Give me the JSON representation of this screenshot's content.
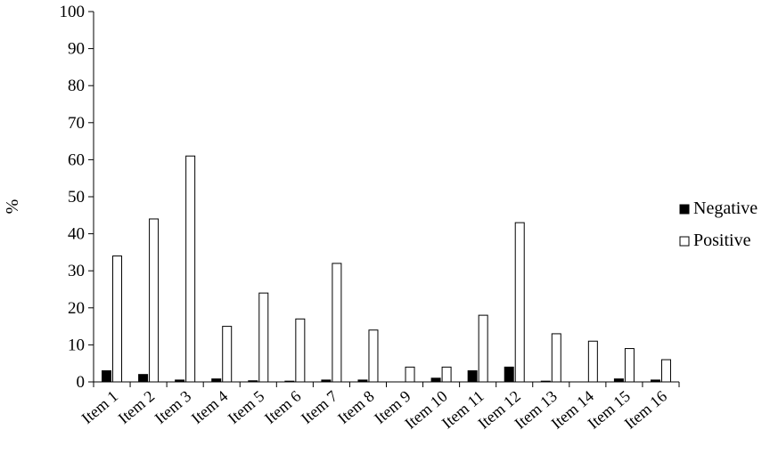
{
  "chart_data": {
    "type": "bar",
    "title": "",
    "xlabel": "",
    "ylabel": "%",
    "ylim": [
      0,
      100
    ],
    "yticks": [
      0,
      10,
      20,
      30,
      40,
      50,
      60,
      70,
      80,
      90,
      100
    ],
    "grid": false,
    "legend_position": "right",
    "categories": [
      "Item 1",
      "Item 2",
      "Item 3",
      "Item 4",
      "Item 5",
      "Item 6",
      "Item 7",
      "Item 8",
      "Item 9",
      "Item 10",
      "Item 11",
      "Item 12",
      "Item 13",
      "Item 14",
      "Item 15",
      "Item 16"
    ],
    "series": [
      {
        "name": "Negative",
        "color": "#000000",
        "values": [
          3,
          2,
          0.5,
          0.8,
          0.3,
          0.2,
          0.5,
          0.5,
          0,
          1,
          3,
          4,
          0.2,
          0,
          0.8,
          0.5
        ]
      },
      {
        "name": "Positive",
        "color": "#ffffff",
        "values": [
          34,
          44,
          61,
          15,
          24,
          17,
          32,
          14,
          4,
          4,
          18,
          43,
          13,
          11,
          9,
          6
        ]
      }
    ]
  }
}
